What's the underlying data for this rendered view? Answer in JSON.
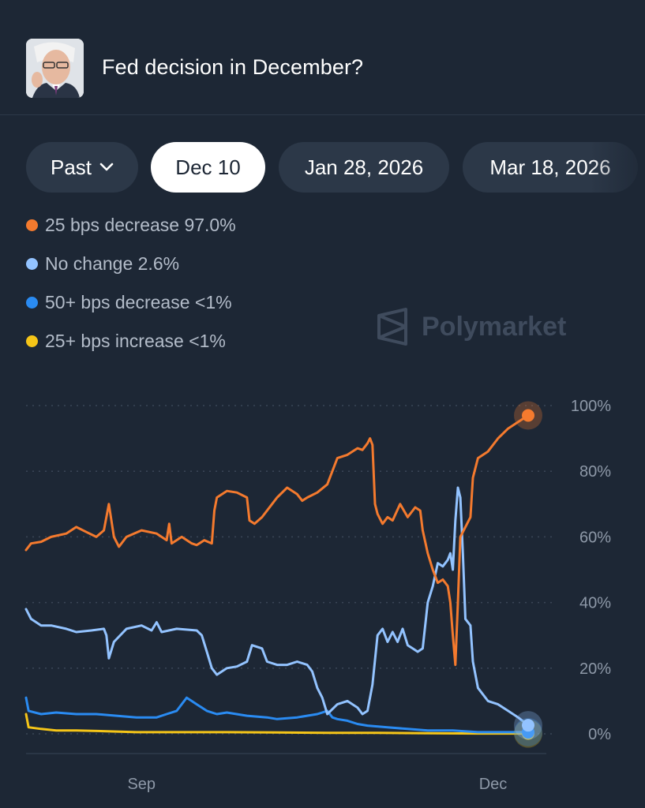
{
  "header": {
    "title": "Fed decision in December?",
    "avatar_icon": "person-portrait-icon"
  },
  "tabs": [
    {
      "label": "Past",
      "has_dropdown": true,
      "active": false
    },
    {
      "label": "Dec 10",
      "active": true
    },
    {
      "label": "Jan 28, 2026",
      "active": false
    },
    {
      "label": "Mar 18, 2026",
      "active": false
    }
  ],
  "legend": [
    {
      "label": "25 bps decrease 97.0%",
      "color": "#f47a2e"
    },
    {
      "label": "No change 2.6%",
      "color": "#93c3ff"
    },
    {
      "label": "50+ bps decrease <1%",
      "color": "#2a8bf2"
    },
    {
      "label": "25+ bps increase <1%",
      "color": "#f5c518"
    }
  ],
  "watermark": {
    "text": "Polymarket",
    "icon": "polymarket-logo-icon"
  },
  "chart_data": {
    "type": "line",
    "x_tick_labels": [
      {
        "label": "Sep",
        "t": 0.23
      },
      {
        "label": "Dec",
        "t": 0.93
      }
    ],
    "y_ticks": [
      {
        "label": "100%",
        "value": 100
      },
      {
        "label": "80%",
        "value": 80
      },
      {
        "label": "60%",
        "value": 60
      },
      {
        "label": "40%",
        "value": 40
      },
      {
        "label": "20%",
        "value": 20
      },
      {
        "label": "0%",
        "value": 0
      }
    ],
    "ylim": [
      0,
      100
    ],
    "grid": "horizontal-dotted",
    "series": [
      {
        "name": "25 bps decrease",
        "color": "#f47a2e",
        "points": [
          [
            0.0,
            56
          ],
          [
            0.01,
            58
          ],
          [
            0.03,
            58.5
          ],
          [
            0.05,
            60
          ],
          [
            0.08,
            61
          ],
          [
            0.1,
            63
          ],
          [
            0.12,
            61.5
          ],
          [
            0.14,
            60
          ],
          [
            0.155,
            62
          ],
          [
            0.165,
            70
          ],
          [
            0.175,
            60
          ],
          [
            0.185,
            57
          ],
          [
            0.2,
            60
          ],
          [
            0.23,
            62
          ],
          [
            0.26,
            61
          ],
          [
            0.28,
            59
          ],
          [
            0.285,
            64
          ],
          [
            0.29,
            58
          ],
          [
            0.31,
            60
          ],
          [
            0.33,
            58
          ],
          [
            0.34,
            57.5
          ],
          [
            0.355,
            59
          ],
          [
            0.37,
            58
          ],
          [
            0.375,
            68
          ],
          [
            0.38,
            72
          ],
          [
            0.4,
            74
          ],
          [
            0.42,
            73.5
          ],
          [
            0.44,
            72
          ],
          [
            0.445,
            65
          ],
          [
            0.455,
            64
          ],
          [
            0.47,
            66
          ],
          [
            0.49,
            70
          ],
          [
            0.5,
            72
          ],
          [
            0.52,
            75
          ],
          [
            0.54,
            73
          ],
          [
            0.55,
            71
          ],
          [
            0.56,
            72
          ],
          [
            0.58,
            73.5
          ],
          [
            0.6,
            76
          ],
          [
            0.62,
            84
          ],
          [
            0.64,
            85
          ],
          [
            0.66,
            87
          ],
          [
            0.67,
            86.5
          ],
          [
            0.68,
            88.5
          ],
          [
            0.685,
            90
          ],
          [
            0.69,
            88
          ],
          [
            0.695,
            70
          ],
          [
            0.7,
            67
          ],
          [
            0.71,
            64
          ],
          [
            0.72,
            66
          ],
          [
            0.73,
            65
          ],
          [
            0.745,
            70
          ],
          [
            0.76,
            66
          ],
          [
            0.775,
            69
          ],
          [
            0.785,
            68
          ],
          [
            0.79,
            62
          ],
          [
            0.8,
            55
          ],
          [
            0.81,
            50
          ],
          [
            0.82,
            46
          ],
          [
            0.83,
            47
          ],
          [
            0.84,
            45
          ],
          [
            0.845,
            40
          ],
          [
            0.85,
            30
          ],
          [
            0.855,
            21
          ],
          [
            0.86,
            40
          ],
          [
            0.865,
            60
          ],
          [
            0.875,
            63
          ],
          [
            0.885,
            66
          ],
          [
            0.89,
            78
          ],
          [
            0.9,
            84
          ],
          [
            0.92,
            86
          ],
          [
            0.94,
            90
          ],
          [
            0.96,
            93
          ],
          [
            0.98,
            95
          ],
          [
            1.0,
            97
          ]
        ]
      },
      {
        "name": "No change",
        "color": "#93c3ff",
        "points": [
          [
            0.0,
            38
          ],
          [
            0.01,
            35
          ],
          [
            0.03,
            33
          ],
          [
            0.05,
            33
          ],
          [
            0.08,
            32
          ],
          [
            0.1,
            31
          ],
          [
            0.13,
            31.5
          ],
          [
            0.155,
            32
          ],
          [
            0.16,
            30
          ],
          [
            0.165,
            23
          ],
          [
            0.175,
            28
          ],
          [
            0.2,
            32
          ],
          [
            0.23,
            33
          ],
          [
            0.25,
            31.5
          ],
          [
            0.26,
            34
          ],
          [
            0.27,
            31
          ],
          [
            0.3,
            32
          ],
          [
            0.34,
            31.5
          ],
          [
            0.35,
            30
          ],
          [
            0.36,
            25
          ],
          [
            0.37,
            20
          ],
          [
            0.38,
            18
          ],
          [
            0.4,
            20
          ],
          [
            0.42,
            20.5
          ],
          [
            0.44,
            22
          ],
          [
            0.45,
            27
          ],
          [
            0.47,
            26
          ],
          [
            0.48,
            22
          ],
          [
            0.5,
            21
          ],
          [
            0.52,
            21
          ],
          [
            0.54,
            22
          ],
          [
            0.56,
            21
          ],
          [
            0.57,
            19
          ],
          [
            0.58,
            14
          ],
          [
            0.59,
            11
          ],
          [
            0.6,
            6
          ],
          [
            0.62,
            9
          ],
          [
            0.64,
            10
          ],
          [
            0.66,
            8
          ],
          [
            0.67,
            6
          ],
          [
            0.68,
            7
          ],
          [
            0.69,
            15
          ],
          [
            0.7,
            30
          ],
          [
            0.71,
            32
          ],
          [
            0.72,
            28
          ],
          [
            0.73,
            31
          ],
          [
            0.74,
            28
          ],
          [
            0.75,
            32
          ],
          [
            0.76,
            27
          ],
          [
            0.77,
            26
          ],
          [
            0.78,
            25
          ],
          [
            0.79,
            26
          ],
          [
            0.8,
            40
          ],
          [
            0.81,
            45
          ],
          [
            0.82,
            52
          ],
          [
            0.83,
            51
          ],
          [
            0.84,
            53
          ],
          [
            0.845,
            55
          ],
          [
            0.85,
            50
          ],
          [
            0.855,
            65
          ],
          [
            0.86,
            75
          ],
          [
            0.865,
            72
          ],
          [
            0.87,
            55
          ],
          [
            0.875,
            35
          ],
          [
            0.885,
            33
          ],
          [
            0.89,
            22
          ],
          [
            0.9,
            14
          ],
          [
            0.92,
            10
          ],
          [
            0.94,
            9
          ],
          [
            0.96,
            7
          ],
          [
            0.98,
            5
          ],
          [
            1.0,
            2.6
          ]
        ]
      },
      {
        "name": "50+ bps decrease",
        "color": "#2a8bf2",
        "points": [
          [
            0.0,
            11
          ],
          [
            0.005,
            7
          ],
          [
            0.03,
            6
          ],
          [
            0.06,
            6.5
          ],
          [
            0.1,
            6
          ],
          [
            0.14,
            6
          ],
          [
            0.18,
            5.5
          ],
          [
            0.22,
            5
          ],
          [
            0.26,
            5
          ],
          [
            0.28,
            6
          ],
          [
            0.3,
            7
          ],
          [
            0.32,
            11
          ],
          [
            0.34,
            9
          ],
          [
            0.36,
            7
          ],
          [
            0.38,
            6
          ],
          [
            0.4,
            6.5
          ],
          [
            0.44,
            5.5
          ],
          [
            0.48,
            5
          ],
          [
            0.5,
            4.5
          ],
          [
            0.54,
            5
          ],
          [
            0.58,
            6
          ],
          [
            0.6,
            7
          ],
          [
            0.61,
            5
          ],
          [
            0.62,
            4.5
          ],
          [
            0.64,
            4
          ],
          [
            0.66,
            3
          ],
          [
            0.68,
            2.5
          ],
          [
            0.72,
            2
          ],
          [
            0.76,
            1.5
          ],
          [
            0.8,
            1
          ],
          [
            0.85,
            1
          ],
          [
            0.9,
            0.5
          ],
          [
            0.95,
            0.5
          ],
          [
            1.0,
            0.5
          ]
        ]
      },
      {
        "name": "25+ bps increase",
        "color": "#f5c518",
        "points": [
          [
            0.0,
            6
          ],
          [
            0.005,
            2
          ],
          [
            0.03,
            1.5
          ],
          [
            0.06,
            1
          ],
          [
            0.1,
            1
          ],
          [
            0.16,
            0.8
          ],
          [
            0.22,
            0.5
          ],
          [
            0.3,
            0.5
          ],
          [
            0.4,
            0.5
          ],
          [
            0.5,
            0.4
          ],
          [
            0.6,
            0.3
          ],
          [
            0.7,
            0.3
          ],
          [
            0.8,
            0.2
          ],
          [
            0.9,
            0.1
          ],
          [
            1.0,
            0.1
          ]
        ]
      }
    ]
  }
}
